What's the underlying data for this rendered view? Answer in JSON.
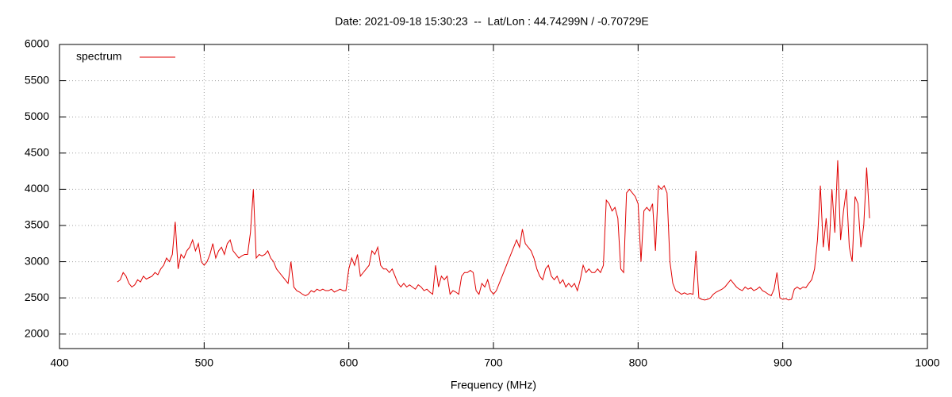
{
  "chart_data": {
    "type": "line",
    "title": "Date: 2021-09-18 15:30:23  --  Lat/Lon : 44.74299N / -0.70729E",
    "x_label": "Frequency (MHz)",
    "xlim": [
      400,
      1000
    ],
    "xticks": [
      400,
      500,
      600,
      700,
      800,
      900,
      1000
    ],
    "ylim": [
      1800,
      6000
    ],
    "yticks": [
      2000,
      2500,
      3000,
      3500,
      4000,
      4500,
      5000,
      5500,
      6000
    ],
    "grid": true,
    "legend": "top-left",
    "x": [
      440,
      442,
      444,
      446,
      448,
      450,
      452,
      454,
      456,
      458,
      460,
      462,
      464,
      466,
      468,
      470,
      472,
      474,
      476,
      478,
      480,
      482,
      484,
      486,
      488,
      490,
      492,
      494,
      496,
      498,
      500,
      502,
      504,
      506,
      508,
      510,
      512,
      514,
      516,
      518,
      520,
      522,
      524,
      526,
      528,
      530,
      532,
      534,
      536,
      538,
      540,
      542,
      544,
      546,
      548,
      550,
      552,
      554,
      556,
      558,
      560,
      562,
      564,
      566,
      568,
      570,
      572,
      574,
      576,
      578,
      580,
      582,
      584,
      586,
      588,
      590,
      592,
      594,
      596,
      598,
      600,
      602,
      604,
      606,
      608,
      610,
      612,
      614,
      616,
      618,
      620,
      622,
      624,
      626,
      628,
      630,
      632,
      634,
      636,
      638,
      640,
      642,
      644,
      646,
      648,
      650,
      652,
      654,
      656,
      658,
      660,
      662,
      664,
      666,
      668,
      670,
      672,
      674,
      676,
      678,
      680,
      682,
      684,
      686,
      688,
      690,
      692,
      694,
      696,
      698,
      700,
      702,
      704,
      706,
      708,
      710,
      712,
      714,
      716,
      718,
      720,
      722,
      724,
      726,
      728,
      730,
      732,
      734,
      736,
      738,
      740,
      742,
      744,
      746,
      748,
      750,
      752,
      754,
      756,
      758,
      760,
      762,
      764,
      766,
      768,
      770,
      772,
      774,
      776,
      778,
      780,
      782,
      784,
      786,
      788,
      790,
      792,
      794,
      796,
      798,
      800,
      802,
      804,
      806,
      808,
      810,
      812,
      814,
      816,
      818,
      820,
      822,
      824,
      826,
      828,
      830,
      832,
      834,
      836,
      838,
      840,
      842,
      844,
      846,
      848,
      850,
      852,
      854,
      856,
      858,
      860,
      862,
      864,
      866,
      868,
      870,
      872,
      874,
      876,
      878,
      880,
      882,
      884,
      886,
      888,
      890,
      892,
      894,
      896,
      898,
      900,
      902,
      904,
      906,
      908,
      910,
      912,
      914,
      916,
      918,
      920,
      922,
      924,
      926,
      928,
      930,
      932,
      934,
      936,
      938,
      940,
      942,
      944,
      946,
      948,
      950,
      952,
      954,
      956,
      958,
      960
    ],
    "series": [
      {
        "name": "spectrum",
        "color": "#e00000",
        "values": [
          2720,
          2750,
          2850,
          2800,
          2700,
          2650,
          2680,
          2750,
          2720,
          2800,
          2760,
          2780,
          2800,
          2850,
          2820,
          2900,
          2950,
          3050,
          3000,
          3100,
          3550,
          2900,
          3100,
          3050,
          3150,
          3200,
          3300,
          3150,
          3250,
          3000,
          2950,
          3000,
          3100,
          3250,
          3050,
          3150,
          3200,
          3100,
          3250,
          3300,
          3150,
          3100,
          3050,
          3080,
          3100,
          3100,
          3400,
          4000,
          3050,
          3100,
          3080,
          3100,
          3150,
          3050,
          3000,
          2900,
          2850,
          2800,
          2750,
          2700,
          3000,
          2650,
          2600,
          2580,
          2550,
          2530,
          2550,
          2600,
          2580,
          2620,
          2600,
          2620,
          2600,
          2600,
          2620,
          2580,
          2600,
          2620,
          2600,
          2600,
          2900,
          3050,
          2950,
          3100,
          2800,
          2850,
          2900,
          2950,
          3150,
          3100,
          3200,
          2950,
          2900,
          2900,
          2850,
          2900,
          2800,
          2700,
          2650,
          2700,
          2650,
          2680,
          2650,
          2620,
          2680,
          2650,
          2600,
          2620,
          2580,
          2550,
          2950,
          2650,
          2800,
          2750,
          2800,
          2550,
          2600,
          2580,
          2550,
          2800,
          2850,
          2850,
          2880,
          2850,
          2600,
          2550,
          2700,
          2650,
          2750,
          2600,
          2550,
          2600,
          2700,
          2800,
          2900,
          3000,
          3100,
          3200,
          3300,
          3200,
          3450,
          3250,
          3200,
          3150,
          3050,
          2900,
          2800,
          2750,
          2900,
          2950,
          2800,
          2750,
          2800,
          2700,
          2750,
          2650,
          2700,
          2650,
          2700,
          2600,
          2750,
          2950,
          2850,
          2900,
          2850,
          2850,
          2900,
          2850,
          2950,
          3850,
          3800,
          3700,
          3750,
          3600,
          2900,
          2850,
          3950,
          4000,
          3950,
          3900,
          3800,
          3000,
          3700,
          3750,
          3700,
          3800,
          3150,
          4050,
          4000,
          4050,
          3950,
          3000,
          2700,
          2600,
          2580,
          2550,
          2570,
          2550,
          2560,
          2550,
          3150,
          2500,
          2480,
          2470,
          2480,
          2500,
          2550,
          2580,
          2600,
          2620,
          2650,
          2700,
          2750,
          2700,
          2650,
          2620,
          2600,
          2650,
          2620,
          2640,
          2600,
          2620,
          2650,
          2600,
          2580,
          2550,
          2530,
          2620,
          2850,
          2500,
          2480,
          2490,
          2470,
          2480,
          2620,
          2650,
          2620,
          2650,
          2640,
          2700,
          2750,
          2900,
          3300,
          4050,
          3200,
          3600,
          3150,
          4000,
          3400,
          4400,
          3300,
          3700,
          4000,
          3200,
          3000,
          3900,
          3800,
          3200,
          3500,
          4300,
          3600
        ]
      }
    ]
  }
}
